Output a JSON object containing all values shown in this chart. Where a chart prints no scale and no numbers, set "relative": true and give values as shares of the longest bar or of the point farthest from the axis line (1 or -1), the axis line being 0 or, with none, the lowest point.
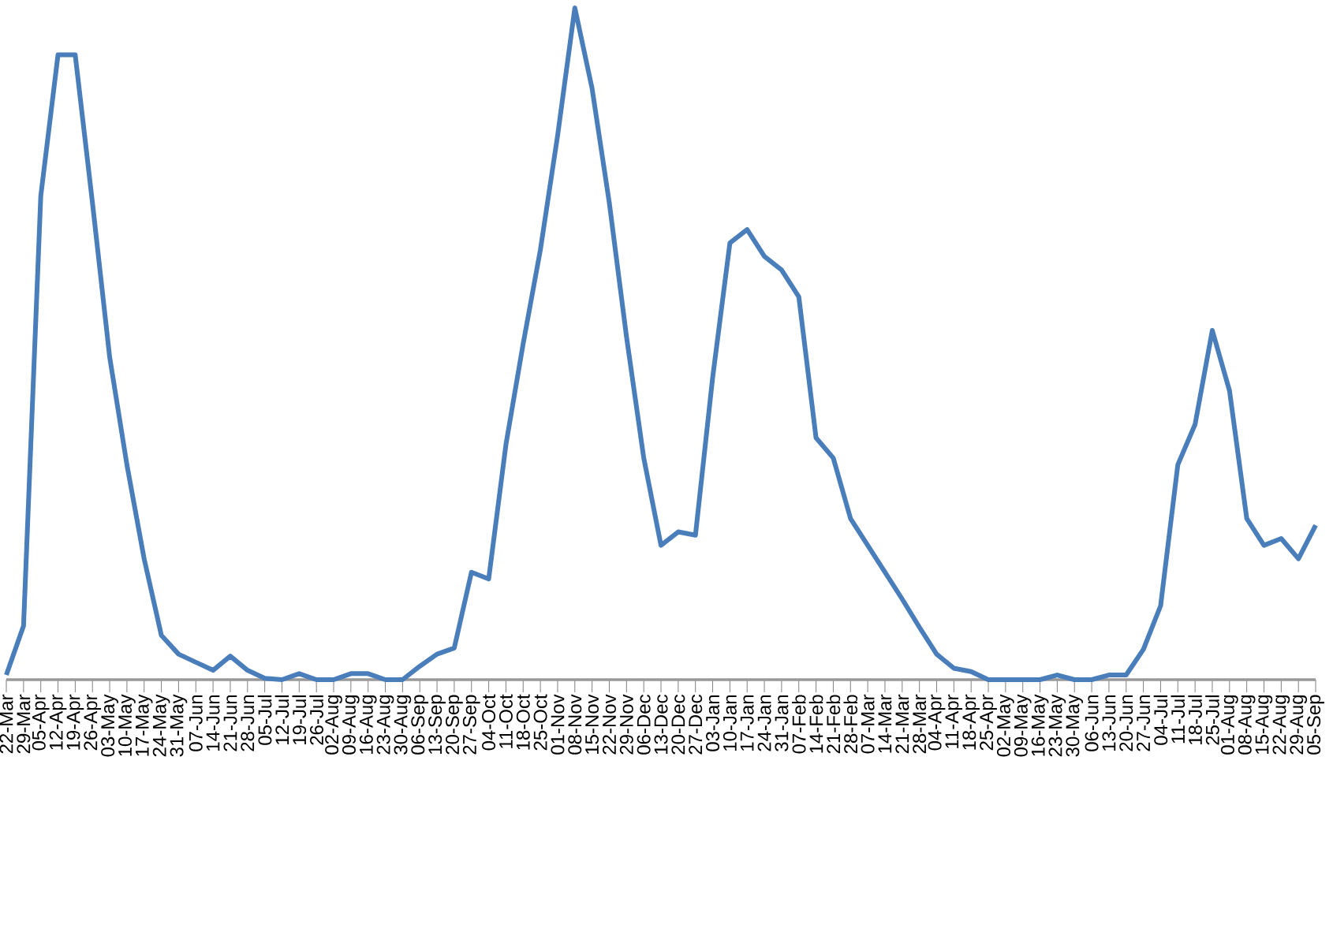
{
  "chart_data": {
    "type": "line",
    "relative": true,
    "color": "#4a7ebb",
    "categories": [
      "22-Mar",
      "29-Mar",
      "05-Apr",
      "12-Apr",
      "19-Apr",
      "26-Apr",
      "03-May",
      "10-May",
      "17-May",
      "24-May",
      "31-May",
      "07-Jun",
      "14-Jun",
      "21-Jun",
      "28-Jun",
      "05-Jul",
      "12-Jul",
      "19-Jul",
      "26-Jul",
      "02-Aug",
      "09-Aug",
      "16-Aug",
      "23-Aug",
      "30-Aug",
      "06-Sep",
      "13-Sep",
      "20-Sep",
      "27-Sep",
      "04-Oct",
      "11-Oct",
      "18-Oct",
      "25-Oct",
      "01-Nov",
      "08-Nov",
      "15-Nov",
      "22-Nov",
      "29-Nov",
      "06-Dec",
      "13-Dec",
      "20-Dec",
      "27-Dec",
      "03-Jan",
      "10-Jan",
      "17-Jan",
      "24-Jan",
      "31-Jan",
      "07-Feb",
      "14-Feb",
      "21-Feb",
      "28-Feb",
      "07-Mar",
      "14-Mar",
      "21-Mar",
      "28-Mar",
      "04-Apr",
      "11-Apr",
      "18-Apr",
      "25-Apr",
      "02-May",
      "09-May",
      "16-May",
      "23-May",
      "30-May",
      "06-Jun",
      "13-Jun",
      "20-Jun",
      "27-Jun",
      "04-Jul",
      "11-Jul",
      "18-Jul",
      "25-Jul",
      "01-Aug",
      "08-Aug",
      "15-Aug",
      "22-Aug",
      "29-Aug",
      "05-Sep"
    ],
    "values": [
      0.007,
      0.08,
      0.72,
      0.93,
      0.93,
      0.71,
      0.48,
      0.32,
      0.18,
      0.066,
      0.038,
      0.026,
      0.014,
      0.035,
      0.014,
      0.002,
      0,
      0.009,
      0,
      0,
      0.009,
      0.009,
      0,
      0,
      0.02,
      0.038,
      0.047,
      0.16,
      0.15,
      0.35,
      0.5,
      0.64,
      0.81,
      1.0,
      0.88,
      0.71,
      0.51,
      0.33,
      0.2,
      0.22,
      0.215,
      0.45,
      0.65,
      0.67,
      0.63,
      0.61,
      0.57,
      0.36,
      0.33,
      0.24,
      0.2,
      0.16,
      0.12,
      0.078,
      0.038,
      0.017,
      0.012,
      0,
      0,
      0,
      0,
      0.007,
      0,
      0,
      0.007,
      0.007,
      0.045,
      0.11,
      0.32,
      0.38,
      0.52,
      0.43,
      0.24,
      0.2,
      0.21,
      0.18,
      0.23
    ]
  }
}
